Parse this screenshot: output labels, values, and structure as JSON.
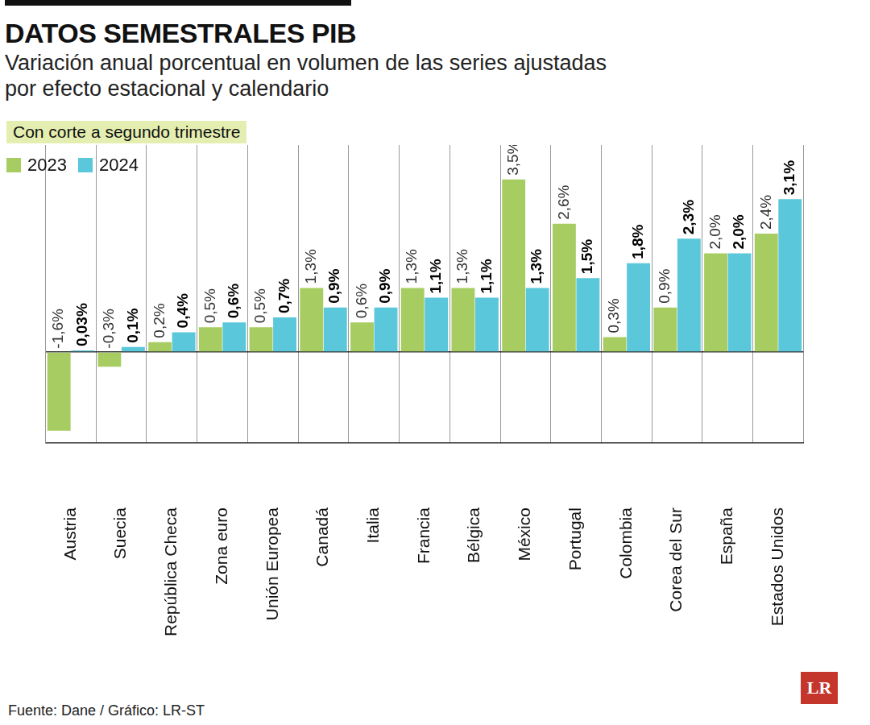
{
  "chart_data": {
    "type": "bar",
    "title": "DATOS SEMESTRALES PIB",
    "subtitle": "Variación anual porcentual en volumen de las series ajustadas por efecto estacional y calendario",
    "note": "Con corte a segundo trimestre",
    "categories": [
      "Austria",
      "Suecia",
      "República Checa",
      "Zona euro",
      "Unión Europea",
      "Canadá",
      "Italia",
      "Francia",
      "Bélgica",
      "México",
      "Portugal",
      "Colombia",
      "Corea del Sur",
      "España",
      "Estados Unidos"
    ],
    "series": [
      {
        "name": "2023",
        "color": "#a7cd62",
        "values": [
          -1.6,
          -0.3,
          0.2,
          0.5,
          0.5,
          1.3,
          0.6,
          1.3,
          1.3,
          3.5,
          2.6,
          0.3,
          0.9,
          2.0,
          2.4
        ],
        "value_labels": [
          "-1,6%",
          "-0,3%",
          "0,2%",
          "0,5%",
          "0,5%",
          "1,3%",
          "0,6%",
          "1,3%",
          "1,3%",
          "3,5%",
          "2,6%",
          "0,3%",
          "0,9%",
          "2,0%",
          "2,4%"
        ]
      },
      {
        "name": "2024",
        "color": "#5ac7db",
        "values": [
          0.03,
          0.1,
          0.4,
          0.6,
          0.7,
          0.9,
          0.9,
          1.1,
          1.1,
          1.3,
          1.5,
          1.8,
          2.3,
          2.0,
          3.1
        ],
        "value_labels": [
          "0,03%",
          "0,1%",
          "0,4%",
          "0,6%",
          "0,7%",
          "0,9%",
          "0,9%",
          "1,1%",
          "1,1%",
          "1,3%",
          "1,5%",
          "1,8%",
          "2,3%",
          "2,0%",
          "3,1%"
        ]
      }
    ],
    "ylim": [
      -1.85,
      4.2
    ],
    "yticks": [
      0
    ],
    "grid": true,
    "legend": "top-left",
    "data_labels": true,
    "tick_labels": "x",
    "source": "Fuente: Dane / Gráfico: LR-ST",
    "logo": "LR"
  }
}
